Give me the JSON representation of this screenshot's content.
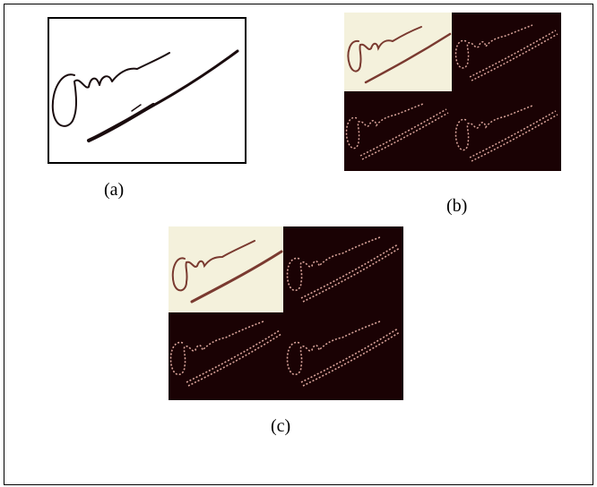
{
  "figure": {
    "captions": {
      "a": "(a)",
      "b": "(b)",
      "c": "(c)"
    }
  },
  "colors": {
    "ink": "#1a0c0e",
    "dark_bg": "#1a0204",
    "cream": "#f4f1dc",
    "stroke_brown": "#7a3a30",
    "edge_pink": "#d9a39a"
  }
}
